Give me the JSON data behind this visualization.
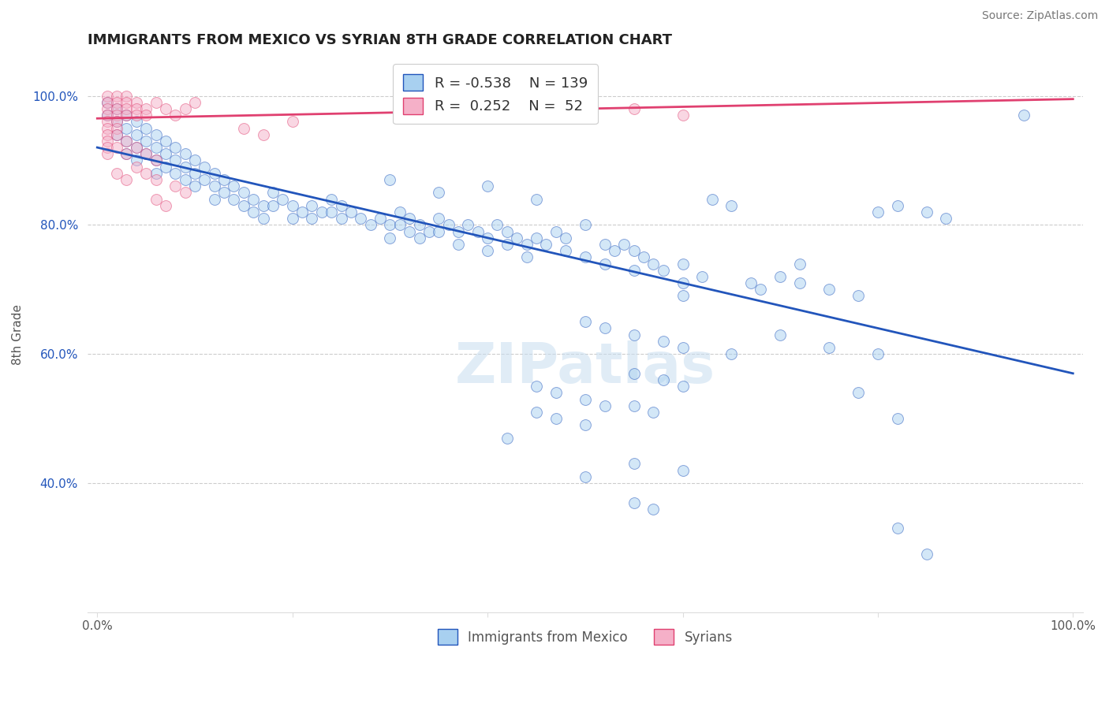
{
  "title": "IMMIGRANTS FROM MEXICO VS SYRIAN 8TH GRADE CORRELATION CHART",
  "source": "Source: ZipAtlas.com",
  "xlabel": "",
  "ylabel": "8th Grade",
  "blue_label": "Immigrants from Mexico",
  "pink_label": "Syrians",
  "blue_R": -0.538,
  "blue_N": 139,
  "pink_R": 0.252,
  "pink_N": 52,
  "blue_color": "#a8d0f0",
  "pink_color": "#f5b0c8",
  "blue_line_color": "#2255bb",
  "pink_line_color": "#e04070",
  "watermark": "ZIPatlas",
  "blue_points": [
    [
      0.01,
      0.99
    ],
    [
      0.01,
      0.97
    ],
    [
      0.02,
      0.98
    ],
    [
      0.02,
      0.96
    ],
    [
      0.02,
      0.94
    ],
    [
      0.03,
      0.97
    ],
    [
      0.03,
      0.95
    ],
    [
      0.03,
      0.93
    ],
    [
      0.03,
      0.91
    ],
    [
      0.04,
      0.96
    ],
    [
      0.04,
      0.94
    ],
    [
      0.04,
      0.92
    ],
    [
      0.04,
      0.9
    ],
    [
      0.05,
      0.95
    ],
    [
      0.05,
      0.93
    ],
    [
      0.05,
      0.91
    ],
    [
      0.06,
      0.94
    ],
    [
      0.06,
      0.92
    ],
    [
      0.06,
      0.9
    ],
    [
      0.06,
      0.88
    ],
    [
      0.07,
      0.93
    ],
    [
      0.07,
      0.91
    ],
    [
      0.07,
      0.89
    ],
    [
      0.08,
      0.92
    ],
    [
      0.08,
      0.9
    ],
    [
      0.08,
      0.88
    ],
    [
      0.09,
      0.91
    ],
    [
      0.09,
      0.89
    ],
    [
      0.09,
      0.87
    ],
    [
      0.1,
      0.9
    ],
    [
      0.1,
      0.88
    ],
    [
      0.1,
      0.86
    ],
    [
      0.11,
      0.89
    ],
    [
      0.11,
      0.87
    ],
    [
      0.12,
      0.88
    ],
    [
      0.12,
      0.86
    ],
    [
      0.12,
      0.84
    ],
    [
      0.13,
      0.87
    ],
    [
      0.13,
      0.85
    ],
    [
      0.14,
      0.86
    ],
    [
      0.14,
      0.84
    ],
    [
      0.15,
      0.85
    ],
    [
      0.15,
      0.83
    ],
    [
      0.16,
      0.84
    ],
    [
      0.16,
      0.82
    ],
    [
      0.17,
      0.83
    ],
    [
      0.17,
      0.81
    ],
    [
      0.18,
      0.85
    ],
    [
      0.18,
      0.83
    ],
    [
      0.19,
      0.84
    ],
    [
      0.2,
      0.83
    ],
    [
      0.2,
      0.81
    ],
    [
      0.21,
      0.82
    ],
    [
      0.22,
      0.83
    ],
    [
      0.22,
      0.81
    ],
    [
      0.23,
      0.82
    ],
    [
      0.24,
      0.84
    ],
    [
      0.24,
      0.82
    ],
    [
      0.25,
      0.83
    ],
    [
      0.25,
      0.81
    ],
    [
      0.26,
      0.82
    ],
    [
      0.27,
      0.81
    ],
    [
      0.28,
      0.8
    ],
    [
      0.29,
      0.81
    ],
    [
      0.3,
      0.8
    ],
    [
      0.3,
      0.78
    ],
    [
      0.31,
      0.82
    ],
    [
      0.31,
      0.8
    ],
    [
      0.32,
      0.81
    ],
    [
      0.32,
      0.79
    ],
    [
      0.33,
      0.8
    ],
    [
      0.33,
      0.78
    ],
    [
      0.34,
      0.79
    ],
    [
      0.35,
      0.81
    ],
    [
      0.35,
      0.79
    ],
    [
      0.36,
      0.8
    ],
    [
      0.37,
      0.79
    ],
    [
      0.37,
      0.77
    ],
    [
      0.38,
      0.8
    ],
    [
      0.39,
      0.79
    ],
    [
      0.4,
      0.78
    ],
    [
      0.4,
      0.76
    ],
    [
      0.41,
      0.8
    ],
    [
      0.42,
      0.79
    ],
    [
      0.42,
      0.77
    ],
    [
      0.43,
      0.78
    ],
    [
      0.44,
      0.77
    ],
    [
      0.44,
      0.75
    ],
    [
      0.3,
      0.87
    ],
    [
      0.35,
      0.85
    ],
    [
      0.4,
      0.86
    ],
    [
      0.45,
      0.84
    ],
    [
      0.45,
      0.78
    ],
    [
      0.46,
      0.77
    ],
    [
      0.47,
      0.79
    ],
    [
      0.48,
      0.78
    ],
    [
      0.48,
      0.76
    ],
    [
      0.5,
      0.8
    ],
    [
      0.5,
      0.75
    ],
    [
      0.52,
      0.77
    ],
    [
      0.52,
      0.74
    ],
    [
      0.53,
      0.76
    ],
    [
      0.54,
      0.77
    ],
    [
      0.55,
      0.76
    ],
    [
      0.55,
      0.73
    ],
    [
      0.56,
      0.75
    ],
    [
      0.57,
      0.74
    ],
    [
      0.58,
      0.73
    ],
    [
      0.6,
      0.74
    ],
    [
      0.6,
      0.71
    ],
    [
      0.6,
      0.69
    ],
    [
      0.62,
      0.72
    ],
    [
      0.63,
      0.84
    ],
    [
      0.65,
      0.83
    ],
    [
      0.67,
      0.71
    ],
    [
      0.68,
      0.7
    ],
    [
      0.7,
      0.72
    ],
    [
      0.72,
      0.74
    ],
    [
      0.72,
      0.71
    ],
    [
      0.75,
      0.7
    ],
    [
      0.78,
      0.69
    ],
    [
      0.8,
      0.82
    ],
    [
      0.82,
      0.83
    ],
    [
      0.85,
      0.82
    ],
    [
      0.87,
      0.81
    ],
    [
      0.95,
      0.97
    ],
    [
      0.7,
      0.63
    ],
    [
      0.75,
      0.61
    ],
    [
      0.8,
      0.6
    ],
    [
      0.5,
      0.65
    ],
    [
      0.52,
      0.64
    ],
    [
      0.55,
      0.63
    ],
    [
      0.58,
      0.62
    ],
    [
      0.6,
      0.61
    ],
    [
      0.65,
      0.6
    ],
    [
      0.55,
      0.57
    ],
    [
      0.58,
      0.56
    ],
    [
      0.6,
      0.55
    ],
    [
      0.55,
      0.52
    ],
    [
      0.57,
      0.51
    ],
    [
      0.5,
      0.53
    ],
    [
      0.52,
      0.52
    ],
    [
      0.45,
      0.55
    ],
    [
      0.47,
      0.54
    ],
    [
      0.45,
      0.51
    ],
    [
      0.47,
      0.5
    ],
    [
      0.5,
      0.49
    ],
    [
      0.42,
      0.47
    ],
    [
      0.55,
      0.43
    ],
    [
      0.5,
      0.41
    ],
    [
      0.6,
      0.42
    ],
    [
      0.78,
      0.54
    ],
    [
      0.82,
      0.5
    ],
    [
      0.82,
      0.33
    ],
    [
      0.85,
      0.29
    ],
    [
      0.55,
      0.37
    ],
    [
      0.57,
      0.36
    ]
  ],
  "pink_points": [
    [
      0.01,
      1.0
    ],
    [
      0.01,
      0.99
    ],
    [
      0.01,
      0.98
    ],
    [
      0.01,
      0.97
    ],
    [
      0.01,
      0.96
    ],
    [
      0.01,
      0.95
    ],
    [
      0.01,
      0.94
    ],
    [
      0.01,
      0.93
    ],
    [
      0.01,
      0.92
    ],
    [
      0.02,
      1.0
    ],
    [
      0.02,
      0.99
    ],
    [
      0.02,
      0.98
    ],
    [
      0.02,
      0.97
    ],
    [
      0.02,
      0.96
    ],
    [
      0.02,
      0.95
    ],
    [
      0.02,
      0.94
    ],
    [
      0.03,
      1.0
    ],
    [
      0.03,
      0.99
    ],
    [
      0.03,
      0.98
    ],
    [
      0.03,
      0.97
    ],
    [
      0.04,
      0.99
    ],
    [
      0.04,
      0.98
    ],
    [
      0.04,
      0.97
    ],
    [
      0.05,
      0.98
    ],
    [
      0.05,
      0.97
    ],
    [
      0.06,
      0.99
    ],
    [
      0.07,
      0.98
    ],
    [
      0.08,
      0.97
    ],
    [
      0.09,
      0.98
    ],
    [
      0.1,
      0.99
    ],
    [
      0.03,
      0.93
    ],
    [
      0.04,
      0.92
    ],
    [
      0.05,
      0.91
    ],
    [
      0.06,
      0.9
    ],
    [
      0.02,
      0.88
    ],
    [
      0.03,
      0.87
    ],
    [
      0.55,
      0.98
    ],
    [
      0.6,
      0.97
    ],
    [
      0.15,
      0.95
    ],
    [
      0.17,
      0.94
    ],
    [
      0.2,
      0.96
    ],
    [
      0.08,
      0.86
    ],
    [
      0.09,
      0.85
    ],
    [
      0.06,
      0.84
    ],
    [
      0.07,
      0.83
    ],
    [
      0.05,
      0.88
    ],
    [
      0.06,
      0.87
    ],
    [
      0.04,
      0.89
    ],
    [
      0.03,
      0.91
    ],
    [
      0.02,
      0.92
    ],
    [
      0.01,
      0.91
    ]
  ],
  "blue_line_x": [
    0.0,
    1.0
  ],
  "blue_line_y": [
    0.92,
    0.57
  ],
  "pink_line_x": [
    0.0,
    1.0
  ],
  "pink_line_y": [
    0.965,
    0.995
  ],
  "xlim": [
    -0.01,
    1.01
  ],
  "ylim": [
    0.2,
    1.06
  ],
  "yticks": [
    0.4,
    0.6,
    0.8,
    1.0
  ],
  "ytick_labels": [
    "40.0%",
    "60.0%",
    "80.0%",
    "100.0%"
  ],
  "xticks": [
    0.0,
    0.2,
    0.4,
    0.6,
    0.8,
    1.0
  ],
  "xtick_labels": [
    "0.0%",
    "",
    "",
    "",
    "",
    "100.0%"
  ],
  "grid_color": "#cccccc",
  "background_color": "#ffffff",
  "title_fontsize": 13,
  "axis_label_fontsize": 11,
  "tick_fontsize": 11,
  "legend_fontsize": 13,
  "source_fontsize": 10,
  "marker_size": 100,
  "marker_alpha": 0.5,
  "line_width": 2.0
}
